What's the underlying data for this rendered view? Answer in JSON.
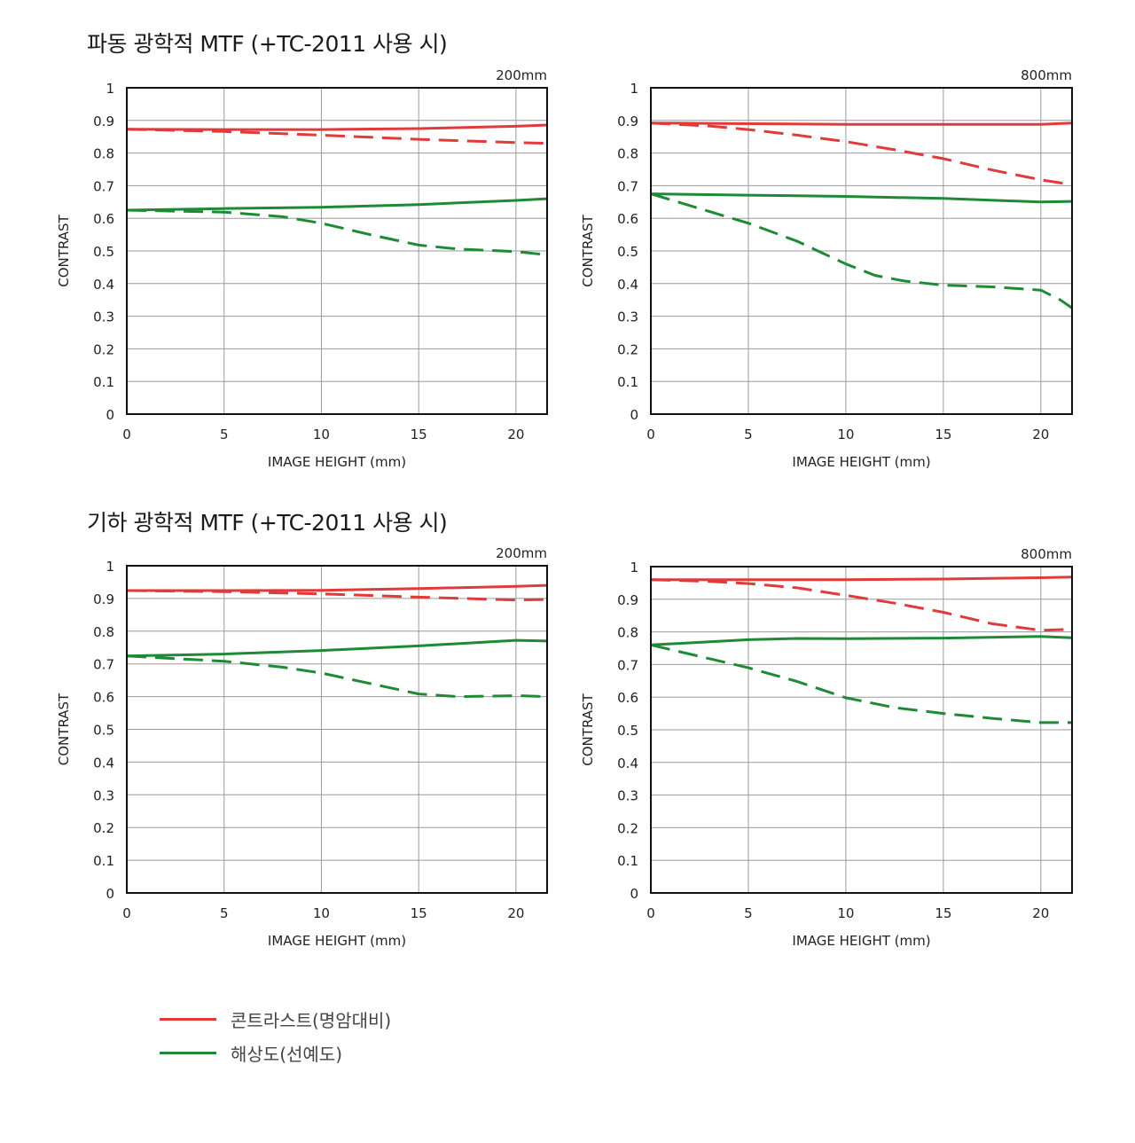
{
  "sections": [
    {
      "title": "파동 광학적 MTF (+TC-2011 사용 시)"
    },
    {
      "title": "기하 광학적 MTF (+TC-2011 사용 시)"
    }
  ],
  "legend": [
    {
      "label": "콘트라스트(명암대비)",
      "color": "#e03a3a"
    },
    {
      "label": "해상도(선예도)",
      "color": "#1e8a35"
    }
  ],
  "colors": {
    "contrast": "#e03a3a",
    "resolution": "#1e8a35",
    "grid": "#9a9a9a",
    "frame": "#111111"
  },
  "chart_data": [
    {
      "type": "line",
      "focal_label": "200mm",
      "xlabel": "IMAGE HEIGHT (mm)",
      "ylabel": "CONTRAST",
      "xlim": [
        0,
        21.6
      ],
      "ylim": [
        0,
        1
      ],
      "xticks": [
        "0",
        "5",
        "10",
        "15",
        "20"
      ],
      "yticks": [
        "0",
        "0.1",
        "0.2",
        "0.3",
        "0.4",
        "0.5",
        "0.6",
        "0.7",
        "0.8",
        "0.9",
        "1"
      ],
      "series": [
        {
          "key": "contrast",
          "style": "solid",
          "x": [
            0,
            5,
            10,
            15,
            20,
            21.6
          ],
          "y": [
            0.873,
            0.872,
            0.872,
            0.875,
            0.882,
            0.886
          ]
        },
        {
          "key": "contrast",
          "style": "dashed",
          "x": [
            0,
            5,
            10,
            15,
            20,
            21.6
          ],
          "y": [
            0.873,
            0.866,
            0.855,
            0.842,
            0.832,
            0.83
          ]
        },
        {
          "key": "resolution",
          "style": "solid",
          "x": [
            0,
            5,
            10,
            15,
            20,
            21.6
          ],
          "y": [
            0.625,
            0.63,
            0.634,
            0.642,
            0.655,
            0.66
          ]
        },
        {
          "key": "resolution",
          "style": "dashed",
          "x": [
            0,
            5,
            8,
            10,
            12.5,
            15,
            17,
            20,
            21.6
          ],
          "y": [
            0.625,
            0.619,
            0.605,
            0.585,
            0.55,
            0.518,
            0.506,
            0.498,
            0.488
          ]
        }
      ]
    },
    {
      "type": "line",
      "focal_label": "800mm",
      "xlabel": "IMAGE HEIGHT (mm)",
      "ylabel": "CONTRAST",
      "xlim": [
        0,
        21.6
      ],
      "ylim": [
        0,
        1
      ],
      "xticks": [
        "0",
        "5",
        "10",
        "15",
        "20"
      ],
      "yticks": [
        "0",
        "0.1",
        "0.2",
        "0.3",
        "0.4",
        "0.5",
        "0.6",
        "0.7",
        "0.8",
        "0.9",
        "1"
      ],
      "series": [
        {
          "key": "contrast",
          "style": "solid",
          "x": [
            0,
            5,
            10,
            15,
            20,
            21.6
          ],
          "y": [
            0.892,
            0.89,
            0.888,
            0.888,
            0.888,
            0.892
          ]
        },
        {
          "key": "contrast",
          "style": "dashed",
          "x": [
            0,
            3,
            5,
            7.5,
            10,
            12.5,
            15,
            17.5,
            20,
            21.6
          ],
          "y": [
            0.892,
            0.883,
            0.872,
            0.855,
            0.835,
            0.81,
            0.783,
            0.748,
            0.718,
            0.703
          ]
        },
        {
          "key": "resolution",
          "style": "solid",
          "x": [
            0,
            5,
            10,
            15,
            20,
            21.6
          ],
          "y": [
            0.675,
            0.671,
            0.667,
            0.661,
            0.65,
            0.652
          ]
        },
        {
          "key": "resolution",
          "style": "dashed",
          "x": [
            0,
            2.5,
            5,
            7.5,
            10,
            11.5,
            13,
            15,
            17.5,
            20,
            21,
            21.6
          ],
          "y": [
            0.675,
            0.63,
            0.585,
            0.53,
            0.46,
            0.425,
            0.408,
            0.395,
            0.39,
            0.38,
            0.35,
            0.325
          ]
        }
      ]
    },
    {
      "type": "line",
      "focal_label": "200mm",
      "xlabel": "IMAGE HEIGHT (mm)",
      "ylabel": "CONTRAST",
      "xlim": [
        0,
        21.6
      ],
      "ylim": [
        0,
        1
      ],
      "xticks": [
        "0",
        "5",
        "10",
        "15",
        "20"
      ],
      "yticks": [
        "0",
        "0.1",
        "0.2",
        "0.3",
        "0.4",
        "0.5",
        "0.6",
        "0.7",
        "0.8",
        "0.9",
        "1"
      ],
      "series": [
        {
          "key": "contrast",
          "style": "solid",
          "x": [
            0,
            5,
            10,
            15,
            20,
            21.6
          ],
          "y": [
            0.924,
            0.924,
            0.925,
            0.93,
            0.937,
            0.94
          ]
        },
        {
          "key": "contrast",
          "style": "dashed",
          "x": [
            0,
            5,
            10,
            15,
            20,
            21.6
          ],
          "y": [
            0.924,
            0.921,
            0.914,
            0.904,
            0.895,
            0.897
          ]
        },
        {
          "key": "resolution",
          "style": "solid",
          "x": [
            0,
            5,
            10,
            15,
            20,
            21.6
          ],
          "y": [
            0.724,
            0.73,
            0.741,
            0.755,
            0.772,
            0.77
          ]
        },
        {
          "key": "resolution",
          "style": "dashed",
          "x": [
            0,
            5,
            8,
            10,
            12.5,
            15,
            17,
            20,
            21.6
          ],
          "y": [
            0.724,
            0.708,
            0.69,
            0.672,
            0.64,
            0.608,
            0.6,
            0.603,
            0.6
          ]
        }
      ]
    },
    {
      "type": "line",
      "focal_label": "800mm",
      "xlabel": "IMAGE HEIGHT (mm)",
      "ylabel": "CONTRAST",
      "xlim": [
        0,
        21.6
      ],
      "ylim": [
        0,
        1
      ],
      "xticks": [
        "0",
        "5",
        "10",
        "15",
        "20"
      ],
      "yticks": [
        "0",
        "0.1",
        "0.2",
        "0.3",
        "0.4",
        "0.5",
        "0.6",
        "0.7",
        "0.8",
        "0.9",
        "1"
      ],
      "series": [
        {
          "key": "contrast",
          "style": "solid",
          "x": [
            0,
            5,
            10,
            15,
            20,
            21.6
          ],
          "y": [
            0.96,
            0.96,
            0.96,
            0.962,
            0.966,
            0.968
          ]
        },
        {
          "key": "contrast",
          "style": "dashed",
          "x": [
            0,
            3,
            5,
            7.5,
            10,
            12.5,
            15,
            17.5,
            20,
            21.6
          ],
          "y": [
            0.96,
            0.955,
            0.948,
            0.935,
            0.912,
            0.888,
            0.86,
            0.825,
            0.805,
            0.808
          ]
        },
        {
          "key": "resolution",
          "style": "solid",
          "x": [
            0,
            2.5,
            5,
            7.5,
            10,
            15,
            20,
            21.6
          ],
          "y": [
            0.76,
            0.768,
            0.776,
            0.78,
            0.779,
            0.781,
            0.786,
            0.782
          ]
        },
        {
          "key": "resolution",
          "style": "dashed",
          "x": [
            0,
            2.5,
            5,
            7.5,
            10,
            12.5,
            15,
            17.5,
            20,
            21.6
          ],
          "y": [
            0.76,
            0.725,
            0.69,
            0.648,
            0.598,
            0.568,
            0.55,
            0.535,
            0.522,
            0.522
          ]
        }
      ]
    }
  ]
}
